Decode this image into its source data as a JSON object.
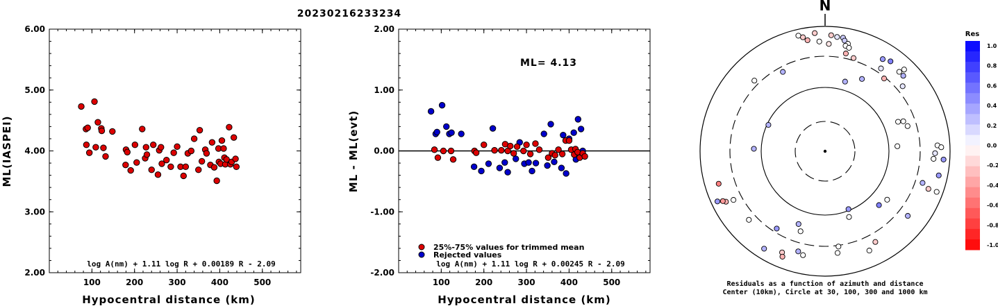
{
  "title": "20230216233234",
  "chart_data": [
    {
      "type": "scatter",
      "name": "left",
      "ylabel": "ML(IASPEI)",
      "xlabel": "Hypocentral distance (km)",
      "xlim": [
        0,
        590
      ],
      "ylim": [
        2.0,
        6.0
      ],
      "xticks": [
        "100",
        "200",
        "300",
        "400",
        "500"
      ],
      "yticks": [
        "2.00",
        "3.00",
        "4.00",
        "5.00",
        "6.00"
      ],
      "formula": "log A(nm) + 1.11 log R + 0.00189 R - 2.09",
      "point_color": "#dd0000",
      "points": [
        [
          75,
          4.73
        ],
        [
          86,
          4.36
        ],
        [
          87,
          4.1
        ],
        [
          90,
          4.38
        ],
        [
          94,
          3.97
        ],
        [
          106,
          4.81
        ],
        [
          109,
          4.06
        ],
        [
          114,
          4.47
        ],
        [
          122,
          4.37
        ],
        [
          123,
          4.33
        ],
        [
          127,
          4.05
        ],
        [
          132,
          3.91
        ],
        [
          148,
          4.32
        ],
        [
          179,
          3.77
        ],
        [
          180,
          4.02
        ],
        [
          183,
          3.98
        ],
        [
          191,
          3.68
        ],
        [
          201,
          4.1
        ],
        [
          205,
          3.81
        ],
        [
          218,
          4.36
        ],
        [
          225,
          3.88
        ],
        [
          227,
          4.06
        ],
        [
          229,
          3.94
        ],
        [
          240,
          3.69
        ],
        [
          244,
          4.1
        ],
        [
          255,
          3.61
        ],
        [
          258,
          4.01
        ],
        [
          262,
          4.06
        ],
        [
          264,
          3.79
        ],
        [
          275,
          3.85
        ],
        [
          285,
          3.74
        ],
        [
          292,
          3.97
        ],
        [
          300,
          4.07
        ],
        [
          308,
          3.74
        ],
        [
          315,
          3.59
        ],
        [
          320,
          3.74
        ],
        [
          325,
          3.96
        ],
        [
          333,
          4.0
        ],
        [
          340,
          4.2
        ],
        [
          350,
          3.69
        ],
        [
          353,
          4.34
        ],
        [
          358,
          3.83
        ],
        [
          366,
          4.02
        ],
        [
          369,
          3.96
        ],
        [
          378,
          3.77
        ],
        [
          382,
          4.14
        ],
        [
          387,
          3.73
        ],
        [
          393,
          3.51
        ],
        [
          397,
          4.04
        ],
        [
          398,
          3.82
        ],
        [
          402,
          3.79
        ],
        [
          405,
          4.17
        ],
        [
          409,
          4.04
        ],
        [
          411,
          3.89
        ],
        [
          413,
          3.78
        ],
        [
          416,
          3.86
        ],
        [
          422,
          4.39
        ],
        [
          425,
          3.78
        ],
        [
          428,
          3.82
        ],
        [
          433,
          4.22
        ],
        [
          437,
          3.87
        ],
        [
          439,
          3.74
        ]
      ]
    },
    {
      "type": "scatter",
      "name": "right",
      "ylabel": "ML - ML(evt)",
      "xlabel": "Hypocentral distance (km)",
      "xlim": [
        0,
        590
      ],
      "ylim": [
        -2.0,
        2.0
      ],
      "xticks": [
        "100",
        "200",
        "300",
        "400",
        "500"
      ],
      "yticks": [
        "-2.00",
        "-1.00",
        "0.00",
        "1.00",
        "2.00"
      ],
      "ml_text": "ML= 4.13",
      "legend": [
        "25%-75% values for trimmed mean",
        "Rejected values"
      ],
      "formula": "log A(nm) + 1.11 log R + 0.00245 R - 2.09",
      "colors": {
        "trimmed": "#dd0000",
        "rejected": "#0000cc"
      },
      "trimmed": [
        [
          84,
          0.02
        ],
        [
          92,
          -0.11
        ],
        [
          105,
          0.0
        ],
        [
          123,
          0.0
        ],
        [
          128,
          -0.14
        ],
        [
          178,
          0.0
        ],
        [
          182,
          -0.03
        ],
        [
          200,
          0.1
        ],
        [
          225,
          0.01
        ],
        [
          241,
          0.01
        ],
        [
          250,
          0.11
        ],
        [
          256,
          0.0
        ],
        [
          262,
          0.08
        ],
        [
          270,
          -0.04
        ],
        [
          278,
          0.07
        ],
        [
          293,
          0.0
        ],
        [
          300,
          0.1
        ],
        [
          309,
          -0.05
        ],
        [
          321,
          0.12
        ],
        [
          330,
          0.02
        ],
        [
          351,
          -0.11
        ],
        [
          360,
          -0.04
        ],
        [
          367,
          -0.07
        ],
        [
          375,
          0.02
        ],
        [
          384,
          -0.05
        ],
        [
          392,
          0.17
        ],
        [
          400,
          0.17
        ],
        [
          405,
          0.02
        ],
        [
          412,
          -0.06
        ],
        [
          415,
          0.03
        ],
        [
          420,
          -0.02
        ],
        [
          425,
          -0.11
        ],
        [
          432,
          -0.04
        ],
        [
          437,
          -0.09
        ]
      ],
      "rejected": [
        [
          76,
          0.65
        ],
        [
          87,
          0.28
        ],
        [
          90,
          0.31
        ],
        [
          102,
          0.75
        ],
        [
          112,
          0.4
        ],
        [
          119,
          0.28
        ],
        [
          124,
          0.3
        ],
        [
          147,
          0.28
        ],
        [
          177,
          -0.26
        ],
        [
          194,
          -0.33
        ],
        [
          211,
          -0.21
        ],
        [
          221,
          0.37
        ],
        [
          237,
          -0.28
        ],
        [
          249,
          -0.19
        ],
        [
          256,
          -0.35
        ],
        [
          275,
          -0.13
        ],
        [
          284,
          0.14
        ],
        [
          295,
          -0.21
        ],
        [
          305,
          -0.19
        ],
        [
          313,
          -0.33
        ],
        [
          322,
          -0.2
        ],
        [
          341,
          0.28
        ],
        [
          349,
          -0.24
        ],
        [
          357,
          0.44
        ],
        [
          365,
          -0.18
        ],
        [
          382,
          -0.28
        ],
        [
          386,
          0.26
        ],
        [
          393,
          -0.37
        ],
        [
          400,
          0.2
        ],
        [
          411,
          0.3
        ],
        [
          416,
          -0.14
        ],
        [
          421,
          0.52
        ],
        [
          428,
          0.36
        ],
        [
          432,
          0.0
        ]
      ]
    },
    {
      "type": "scatter",
      "name": "polar",
      "north": "N",
      "caption_line1": "Residuals as a function of azimuth and distance",
      "caption_line2": "Center (10km), Circle at 30, 100, 300 and 1000 km",
      "colorbar_title": "Res",
      "colorbar_ticks": [
        "1.0",
        "0.8",
        "0.6",
        "0.4",
        "0.2",
        "0.0",
        "-0.2",
        "-0.4",
        "-0.6",
        "-0.8",
        "-1.0"
      ],
      "points_note": "azimuth_deg, log10-scaled radius fraction, residual",
      "points": [
        [
          -13,
          0.95,
          0.0
        ],
        [
          -11,
          0.93,
          -0.2
        ],
        [
          -9,
          0.9,
          -0.3
        ],
        [
          -5,
          0.95,
          -0.2
        ],
        [
          -3,
          0.88,
          0.0
        ],
        [
          2,
          0.86,
          -0.1
        ],
        [
          3,
          0.93,
          -0.2
        ],
        [
          6,
          0.92,
          0.1
        ],
        [
          9,
          0.92,
          0.2
        ],
        [
          10,
          0.9,
          0.2
        ],
        [
          12,
          0.88,
          0.0
        ],
        [
          11,
          0.86,
          0.0
        ],
        [
          12,
          0.8,
          -0.3
        ],
        [
          13,
          0.85,
          0.0
        ],
        [
          17,
          0.78,
          -0.2
        ],
        [
          -28,
          0.72,
          0.3
        ],
        [
          -45,
          0.8,
          0.0
        ],
        [
          -65,
          0.5,
          0.3
        ],
        [
          -88,
          0.57,
          0.3
        ],
        [
          16,
          0.58,
          0.3
        ],
        [
          27,
          0.65,
          0.3
        ],
        [
          32,
          0.87,
          0.4
        ],
        [
          34,
          0.8,
          0.1
        ],
        [
          36,
          0.89,
          0.5
        ],
        [
          39,
          0.75,
          -0.3
        ],
        [
          43,
          0.87,
          0.0
        ],
        [
          44,
          0.91,
          0.0
        ],
        [
          46,
          0.87,
          0.3
        ],
        [
          50,
          0.81,
          0.1
        ],
        [
          69,
          0.67,
          0.0
        ],
        [
          68,
          0.63,
          0.0
        ],
        [
          73,
          0.69,
          0.0
        ],
        [
          86,
          0.58,
          0.0
        ],
        [
          87,
          0.9,
          0.0
        ],
        [
          94,
          0.95,
          0.4
        ],
        [
          88,
          0.93,
          0.0
        ],
        [
          91,
          0.88,
          0.1
        ],
        [
          94,
          0.87,
          0.0
        ],
        [
          102,
          0.93,
          0.4
        ],
        [
          108,
          0.82,
          0.3
        ],
        [
          110,
          0.88,
          -0.2
        ],
        [
          110,
          0.95,
          0.0
        ],
        [
          128,
          0.63,
          0.0
        ],
        [
          128,
          0.84,
          0.3
        ],
        [
          135,
          0.61,
          0.5
        ],
        [
          160,
          0.56,
          0.0
        ],
        [
          158,
          0.5,
          0.4
        ],
        [
          151,
          0.83,
          -0.2
        ],
        [
          -148,
          0.73,
          0.4
        ],
        [
          -132,
          0.82,
          0.0
        ],
        [
          -118,
          0.83,
          0.0
        ],
        [
          -117,
          0.89,
          -0.3
        ],
        [
          -116,
          0.91,
          -0.4
        ],
        [
          -115,
          0.95,
          0.4
        ],
        [
          -107,
          0.89,
          -0.5
        ],
        [
          -148,
          0.92,
          0.3
        ],
        [
          -157,
          0.88,
          -0.2
        ],
        [
          -158,
          0.91,
          -0.3
        ],
        [
          -160,
          0.62,
          0.3
        ],
        [
          -163,
          0.67,
          0.0
        ],
        [
          -168,
          0.85,
          0.0
        ],
        [
          -165,
          0.83,
          0.3
        ],
        [
          172,
          0.77,
          0.0
        ],
        [
          173,
          0.82,
          0.0
        ],
        [
          156,
          0.87,
          0.0
        ]
      ]
    }
  ]
}
